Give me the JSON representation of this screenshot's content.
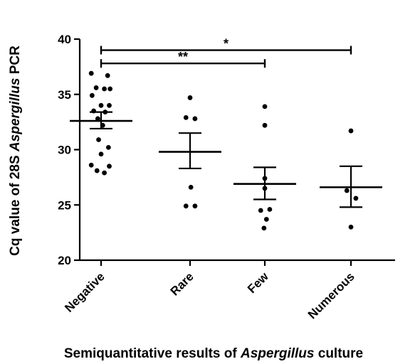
{
  "chart_data": {
    "type": "scatter",
    "xlabel": {
      "prefix": "Semiquantitative results of ",
      "italic": "Aspergillus",
      "suffix": " culture"
    },
    "ylabel": {
      "prefix": "Cq value of 28S ",
      "italic": "Aspergillus",
      "suffix": " PCR"
    },
    "ylim": [
      20,
      40
    ],
    "yticks": [
      "20",
      "25",
      "30",
      "35",
      "40"
    ],
    "ytick_values": [
      20,
      25,
      30,
      35,
      40
    ],
    "categories": [
      "Negative",
      "Rare",
      "Few",
      "Numerous"
    ],
    "groups": [
      {
        "name": "Negative",
        "points": [
          {
            "dx": -0.12,
            "y": 36.9
          },
          {
            "dx": 0.08,
            "y": 36.7
          },
          {
            "dx": -0.06,
            "y": 35.6
          },
          {
            "dx": 0.04,
            "y": 35.5
          },
          {
            "dx": 0.11,
            "y": 35.5
          },
          {
            "dx": -0.11,
            "y": 34.9
          },
          {
            "dx": 0.0,
            "y": 34.0
          },
          {
            "dx": 0.1,
            "y": 34.0
          },
          {
            "dx": -0.09,
            "y": 33.5
          },
          {
            "dx": 0.05,
            "y": 33.4
          },
          {
            "dx": -0.04,
            "y": 32.8
          },
          {
            "dx": 0.02,
            "y": 32.2
          },
          {
            "dx": -0.03,
            "y": 30.9
          },
          {
            "dx": 0.09,
            "y": 30.2
          },
          {
            "dx": 0.0,
            "y": 29.6
          },
          {
            "dx": -0.12,
            "y": 28.6
          },
          {
            "dx": 0.1,
            "y": 28.5
          },
          {
            "dx": -0.05,
            "y": 28.1
          },
          {
            "dx": 0.04,
            "y": 27.9
          }
        ],
        "mean": 32.6,
        "sem_low": 31.9,
        "sem_high": 33.4
      },
      {
        "name": "Rare",
        "points": [
          {
            "dx": 0.0,
            "y": 34.7
          },
          {
            "dx": -0.05,
            "y": 32.9
          },
          {
            "dx": 0.06,
            "y": 32.8
          },
          {
            "dx": 0.01,
            "y": 26.6
          },
          {
            "dx": -0.05,
            "y": 24.9
          },
          {
            "dx": 0.06,
            "y": 24.9
          }
        ],
        "mean": 29.8,
        "sem_low": 28.3,
        "sem_high": 31.5
      },
      {
        "name": "Few",
        "points": [
          {
            "dx": 0.0,
            "y": 33.9
          },
          {
            "dx": 0.0,
            "y": 32.2
          },
          {
            "dx": 0.0,
            "y": 27.4
          },
          {
            "dx": 0.0,
            "y": 26.5
          },
          {
            "dx": -0.05,
            "y": 24.5
          },
          {
            "dx": 0.06,
            "y": 24.6
          },
          {
            "dx": 0.02,
            "y": 23.7
          },
          {
            "dx": -0.01,
            "y": 22.9
          }
        ],
        "mean": 26.9,
        "sem_low": 25.5,
        "sem_high": 28.4
      },
      {
        "name": "Numerous",
        "points": [
          {
            "dx": 0.0,
            "y": 31.7
          },
          {
            "dx": -0.05,
            "y": 26.3
          },
          {
            "dx": 0.06,
            "y": 25.6
          },
          {
            "dx": 0.0,
            "y": 23.0
          }
        ],
        "mean": 26.6,
        "sem_low": 24.8,
        "sem_high": 28.5
      }
    ],
    "significance": [
      {
        "from": "Negative",
        "to": "Numerous",
        "label": "*",
        "y": 39.0
      },
      {
        "from": "Negative",
        "to": "Few",
        "label": "**",
        "y": 37.8
      }
    ],
    "grid": false,
    "legend": "none"
  }
}
